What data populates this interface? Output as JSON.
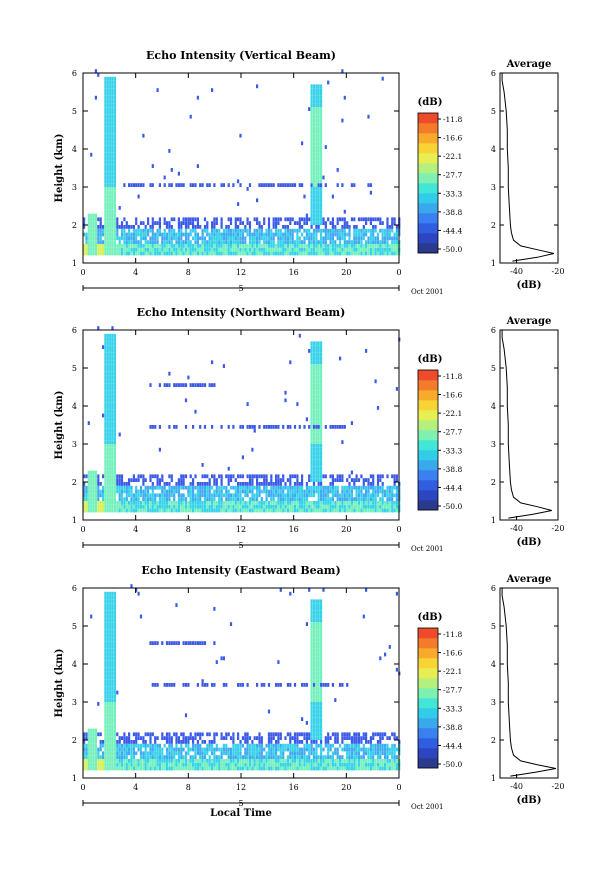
{
  "chart_data": [
    {
      "type": "heatmap",
      "title": "Echo Intensity (Vertical Beam)",
      "ylabel": "Height (km)",
      "xlabel": "",
      "x_ticks": [
        "0",
        "4",
        "8",
        "12",
        "16",
        "20",
        "0"
      ],
      "y_ticks": [
        "1",
        "2",
        "3",
        "4",
        "5",
        "6"
      ],
      "date_tick": "5",
      "date_label": "Oct 2001",
      "xlim": [
        0,
        24
      ],
      "ylim": [
        1,
        6
      ],
      "colorbar": {
        "unit": "(dB)",
        "ticks": [
          "-11.8",
          "-16.6",
          "-22.1",
          "-27.7",
          "-33.3",
          "-38.8",
          "-44.4",
          "-50.0"
        ]
      },
      "average_profile": {
        "title": "Average",
        "xlabel": "(dB)",
        "x_ticks": [
          "-40",
          "-20"
        ],
        "xlim": [
          -48,
          -20
        ],
        "y_ticks": [
          "1",
          "2",
          "3",
          "4",
          "5",
          "6"
        ],
        "heights": [
          1.05,
          1.15,
          1.25,
          1.35,
          1.45,
          1.6,
          1.8,
          2.0,
          2.5,
          3.0,
          3.5,
          4.0,
          4.5,
          5.0,
          5.5,
          5.8,
          6.0
        ],
        "values": [
          -42,
          -30,
          -22,
          -30,
          -38,
          -41.5,
          -42.5,
          -43,
          -43.5,
          -44,
          -44,
          -44.5,
          -44.5,
          -45,
          -46,
          -47,
          -47
        ]
      }
    },
    {
      "type": "heatmap",
      "title": "Echo Intensity (Northward Beam)",
      "ylabel": "Height (km)",
      "xlabel": "",
      "x_ticks": [
        "0",
        "4",
        "8",
        "12",
        "16",
        "20",
        "0"
      ],
      "y_ticks": [
        "1",
        "2",
        "3",
        "4",
        "5",
        "6"
      ],
      "date_tick": "5",
      "date_label": "Oct 2001",
      "xlim": [
        0,
        24
      ],
      "ylim": [
        1,
        6
      ],
      "colorbar": {
        "unit": "(dB)",
        "ticks": [
          "-11.8",
          "-16.6",
          "-22.1",
          "-27.7",
          "-33.3",
          "-38.8",
          "-44.4",
          "-50.0"
        ]
      },
      "average_profile": {
        "title": "Average",
        "xlabel": "(dB)",
        "x_ticks": [
          "-40",
          "-20"
        ],
        "xlim": [
          -48,
          -20
        ],
        "y_ticks": [
          "1",
          "2",
          "3",
          "4",
          "5",
          "6"
        ],
        "heights": [
          1.05,
          1.15,
          1.25,
          1.35,
          1.45,
          1.6,
          1.8,
          2.0,
          2.5,
          3.0,
          3.5,
          4.0,
          4.5,
          5.0,
          5.5,
          5.8,
          6.0
        ],
        "values": [
          -44,
          -32,
          -23,
          -30,
          -38,
          -41.5,
          -42.5,
          -43,
          -43.5,
          -44,
          -44,
          -44.5,
          -44.5,
          -45,
          -46,
          -47,
          -47
        ]
      }
    },
    {
      "type": "heatmap",
      "title": "Echo Intensity (Eastward Beam)",
      "ylabel": "Height (km)",
      "xlabel": "Local Time",
      "x_ticks": [
        "0",
        "4",
        "8",
        "12",
        "16",
        "20",
        "0"
      ],
      "y_ticks": [
        "1",
        "2",
        "3",
        "4",
        "5",
        "6"
      ],
      "date_tick": "5",
      "date_label": "Oct 2001",
      "xlim": [
        0,
        24
      ],
      "ylim": [
        1,
        6
      ],
      "colorbar": {
        "unit": "(dB)",
        "ticks": [
          "-11.8",
          "-16.6",
          "-22.1",
          "-27.7",
          "-33.3",
          "-38.8",
          "-44.4",
          "-50.0"
        ]
      },
      "average_profile": {
        "title": "Average",
        "xlabel": "(dB)",
        "x_ticks": [
          "-40",
          "-20"
        ],
        "xlim": [
          -48,
          -20
        ],
        "y_ticks": [
          "1",
          "2",
          "3",
          "4",
          "5",
          "6"
        ],
        "heights": [
          1.05,
          1.15,
          1.25,
          1.35,
          1.45,
          1.6,
          1.8,
          2.0,
          2.5,
          3.0,
          3.5,
          4.0,
          4.5,
          5.0,
          5.5,
          5.8,
          6.0
        ],
        "values": [
          -43,
          -31,
          -21,
          -30,
          -38,
          -41.5,
          -42.5,
          -43,
          -43.5,
          -44,
          -44,
          -44.5,
          -44.5,
          -45,
          -46,
          -47,
          -47
        ]
      }
    }
  ]
}
